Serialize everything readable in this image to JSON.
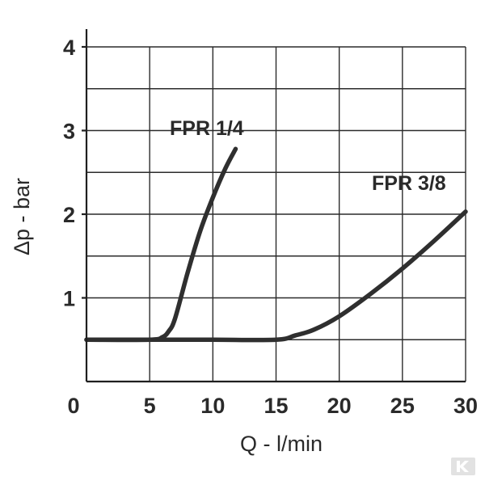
{
  "chart_data": {
    "type": "line",
    "xlabel": "Q - l/min",
    "ylabel": "Δp - bar",
    "xlim": [
      0,
      30
    ],
    "ylim": [
      0,
      4
    ],
    "x_ticks": [
      "0",
      "5",
      "10",
      "15",
      "20",
      "25",
      "30"
    ],
    "y_ticks": [
      "1",
      "2",
      "3",
      "4"
    ],
    "grid": true,
    "series": [
      {
        "name": "FPR 1/4",
        "x": [
          0,
          5,
          6,
          6.5,
          7,
          8,
          9,
          10,
          11,
          11.8
        ],
        "y": [
          0.5,
          0.5,
          0.53,
          0.6,
          0.75,
          1.3,
          1.8,
          2.2,
          2.55,
          2.78
        ]
      },
      {
        "name": "FPR 3/8",
        "x": [
          0,
          5,
          10,
          15,
          16.5,
          18,
          20,
          22.5,
          25,
          27.5,
          30
        ],
        "y": [
          0.5,
          0.5,
          0.5,
          0.5,
          0.55,
          0.62,
          0.78,
          1.05,
          1.35,
          1.68,
          2.03
        ]
      }
    ]
  }
}
